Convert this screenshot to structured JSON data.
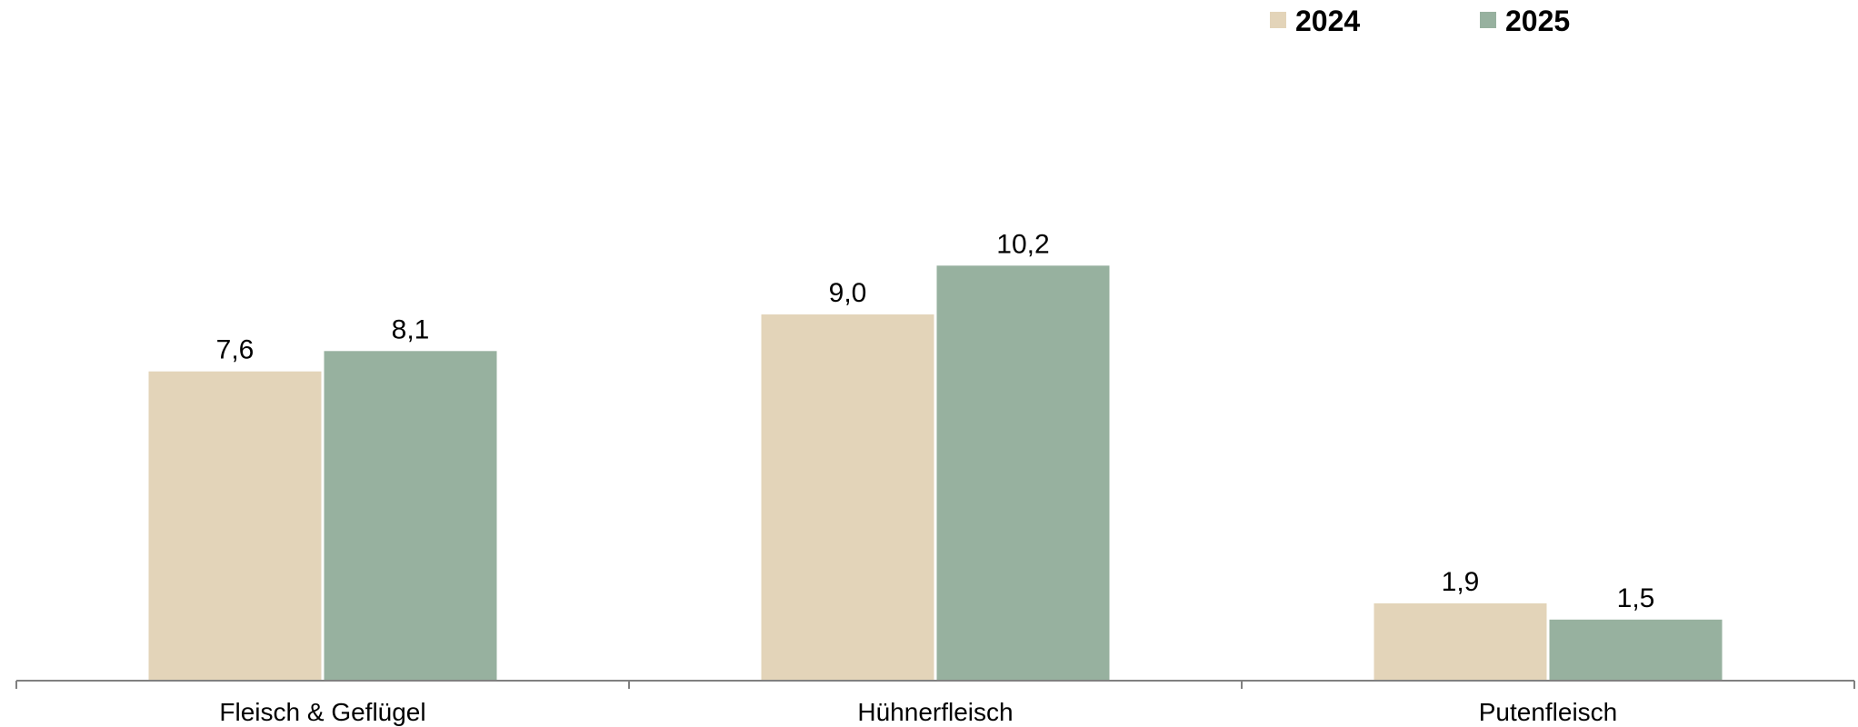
{
  "chart_data": {
    "type": "bar",
    "categories": [
      "Fleisch & Geflügel",
      "Hühnerfleisch",
      "Putenfleisch"
    ],
    "series": [
      {
        "name": "2024",
        "color": "#e3d4b9",
        "values": [
          7.6,
          9.0,
          1.9
        ],
        "labels": [
          "7,6",
          "9,0",
          "1,9"
        ]
      },
      {
        "name": "2025",
        "color": "#97b19f",
        "values": [
          8.1,
          10.2,
          1.5
        ],
        "labels": [
          "8,1",
          "10,2",
          "1,5"
        ]
      }
    ],
    "title": "",
    "xlabel": "",
    "ylabel": "",
    "ylim": [
      0,
      15.5
    ],
    "grid": false,
    "legend_position": "top-right",
    "axis_color": "#808080"
  }
}
